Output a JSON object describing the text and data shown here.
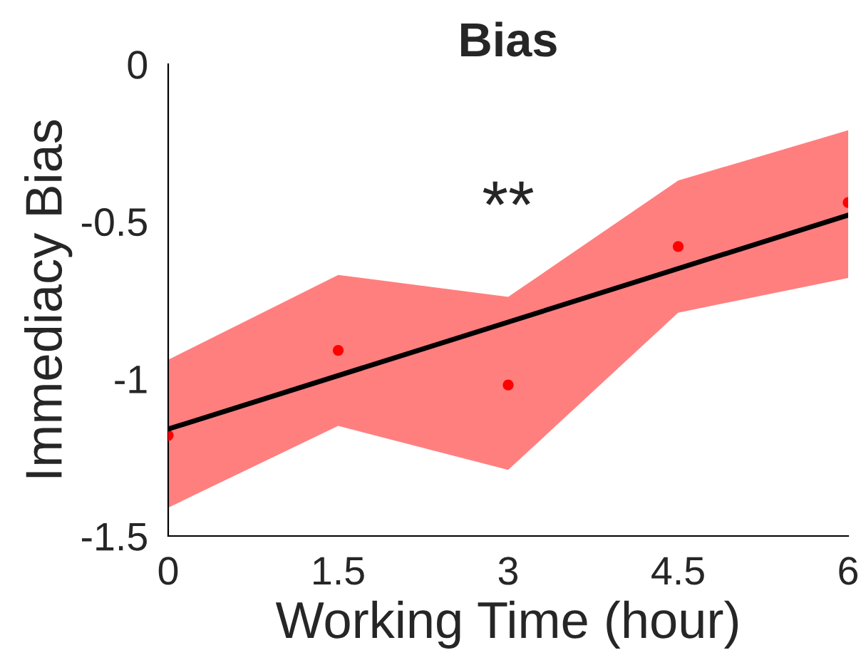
{
  "chart_data": {
    "type": "scatter",
    "title": "Bias",
    "xlabel": "Working Time (hour)",
    "ylabel": "Immediacy Bias",
    "x": [
      0,
      1.5,
      3,
      4.5,
      6
    ],
    "series": [
      {
        "color": "#ff0000",
        "values": [
          -1.18,
          -0.91,
          -1.02,
          -0.58,
          -0.44
        ],
        "lower": [
          -1.41,
          -1.15,
          -1.29,
          -0.79,
          -0.68
        ],
        "upper": [
          -0.94,
          -0.67,
          -0.74,
          -0.37,
          -0.21
        ]
      },
      {
        "type": "line",
        "color": "#000000",
        "x": [
          0,
          6
        ],
        "values": [
          -1.16,
          -0.48
        ]
      }
    ],
    "annotations": [
      "**"
    ],
    "xlim": [
      0,
      6
    ],
    "xticks": [
      0,
      1.5,
      3,
      4.5,
      6
    ],
    "ylim": [
      -1.5,
      0
    ],
    "yticks": [
      -1.5,
      -1,
      -0.5,
      0
    ],
    "grid": false,
    "legend": false
  }
}
